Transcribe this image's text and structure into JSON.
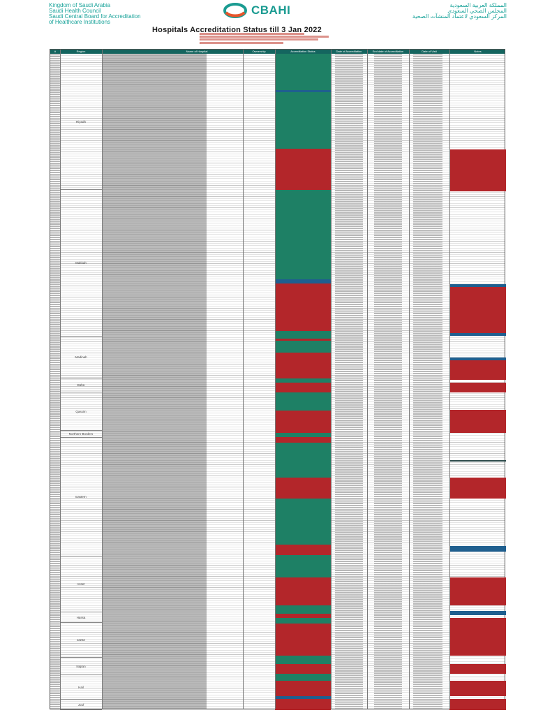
{
  "header": {
    "left_lines": [
      "Kingdom of Saudi Arabia",
      "Saudi Health Council",
      "Saudi Central Board for Accreditation",
      "of Healthcare Institutions"
    ],
    "right_lines": [
      "المملكة العربية السعودية",
      "المجلس الصحي السعودي",
      "المركز السعودي لاعتماد المنشآت الصحية"
    ],
    "logo_text": "CBAHI",
    "logo_icon": "cbahi-ring-icon"
  },
  "document": {
    "title": "Hospitals Accreditation Status till 3 Jan 2022"
  },
  "table": {
    "columns": [
      "#",
      "Region",
      "Name of Hospital",
      "Ownership",
      "Accreditation Status",
      "Date of Accreditation",
      "End date of Accreditation",
      "Date of Visit",
      "Notes"
    ],
    "regions": [
      "Riyadh",
      "Makkah",
      "Madinah",
      "Baha",
      "Qassim",
      "Northern Borders",
      "Eastern",
      "Asser",
      "Hassa",
      "Jazan",
      "Najran",
      "Hail",
      "Jouf"
    ],
    "colors": {
      "header": "#14655f",
      "accredited": "#1e8065",
      "not_accredited": "#b3262a",
      "other": "#1f5f8f"
    }
  }
}
